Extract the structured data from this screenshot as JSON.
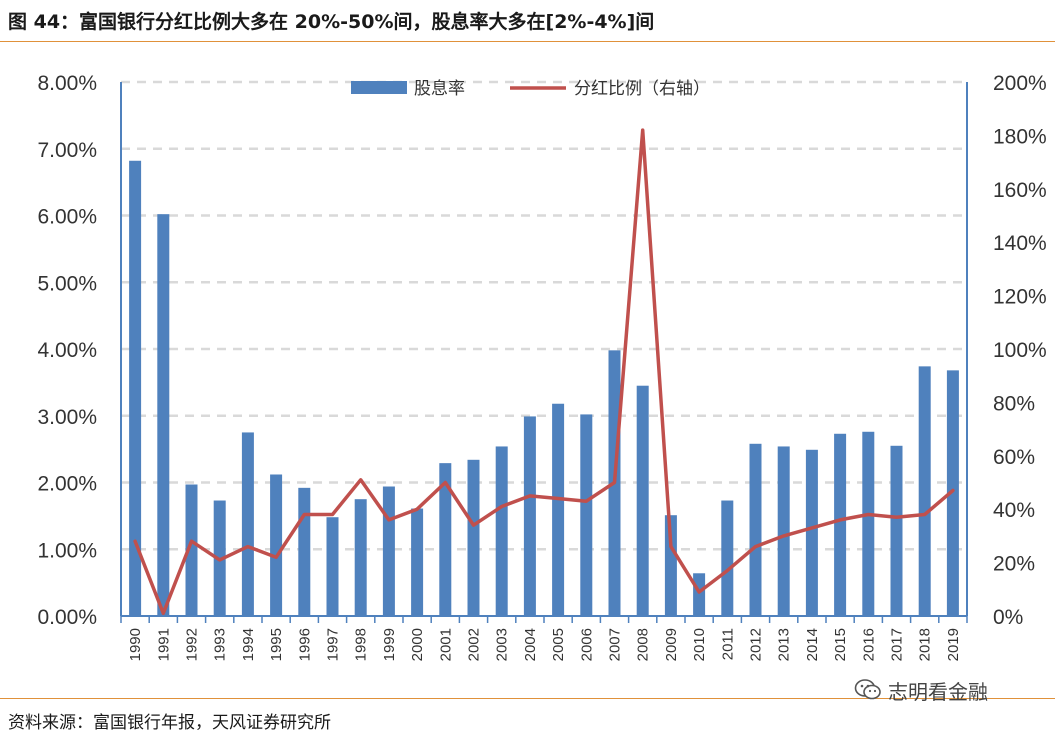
{
  "header": {
    "title": "图 44：富国银行分红比例大多在 20%-50%间，股息率大多在[2%-4%]间"
  },
  "footer": {
    "source": "资料来源：富国银行年报，天风证券研究所"
  },
  "watermark": {
    "text": "志明看金融",
    "icon": "wechat-icon"
  },
  "colors": {
    "bar": "#4f81bd",
    "line": "#c0504d",
    "rule": "#e0913a",
    "grid": "#d9d9d9",
    "axis": "#4f81bd"
  },
  "chart_data": {
    "type": "bar",
    "categories": [
      "1990",
      "1991",
      "1992",
      "1993",
      "1994",
      "1995",
      "1996",
      "1997",
      "1998",
      "1999",
      "2000",
      "2001",
      "2002",
      "2003",
      "2004",
      "2005",
      "2006",
      "2007",
      "2008",
      "2009",
      "2010",
      "2011",
      "2012",
      "2013",
      "2014",
      "2015",
      "2016",
      "2017",
      "2018",
      "2019"
    ],
    "series": [
      {
        "name": "股息率",
        "type": "bar",
        "axis": "left",
        "values": [
          6.82,
          6.02,
          1.97,
          1.73,
          2.75,
          2.12,
          1.92,
          1.48,
          1.75,
          1.94,
          1.61,
          2.29,
          2.34,
          2.54,
          2.99,
          3.18,
          3.02,
          3.98,
          3.45,
          1.51,
          0.64,
          1.73,
          2.58,
          2.54,
          2.49,
          2.73,
          2.76,
          2.55,
          3.74,
          3.68
        ]
      },
      {
        "name": "分红比例（右轴）",
        "type": "line",
        "axis": "right",
        "values": [
          28,
          1,
          28,
          21,
          26,
          22,
          38,
          38,
          51,
          36,
          40,
          50,
          34,
          41,
          45,
          44,
          43,
          50,
          182,
          26,
          9,
          17,
          26,
          30,
          33,
          36,
          38,
          37,
          38,
          47
        ]
      }
    ],
    "y_left": {
      "ticks": [
        "0.00%",
        "1.00%",
        "2.00%",
        "3.00%",
        "4.00%",
        "5.00%",
        "6.00%",
        "7.00%",
        "8.00%"
      ],
      "lim": [
        0,
        8
      ]
    },
    "y_right": {
      "ticks": [
        "0%",
        "20%",
        "40%",
        "60%",
        "80%",
        "100%",
        "120%",
        "140%",
        "160%",
        "180%",
        "200%"
      ],
      "lim": [
        0,
        200
      ]
    },
    "grid": true,
    "legend": "top-center",
    "title": "",
    "xlabel": "",
    "ylabel": ""
  }
}
